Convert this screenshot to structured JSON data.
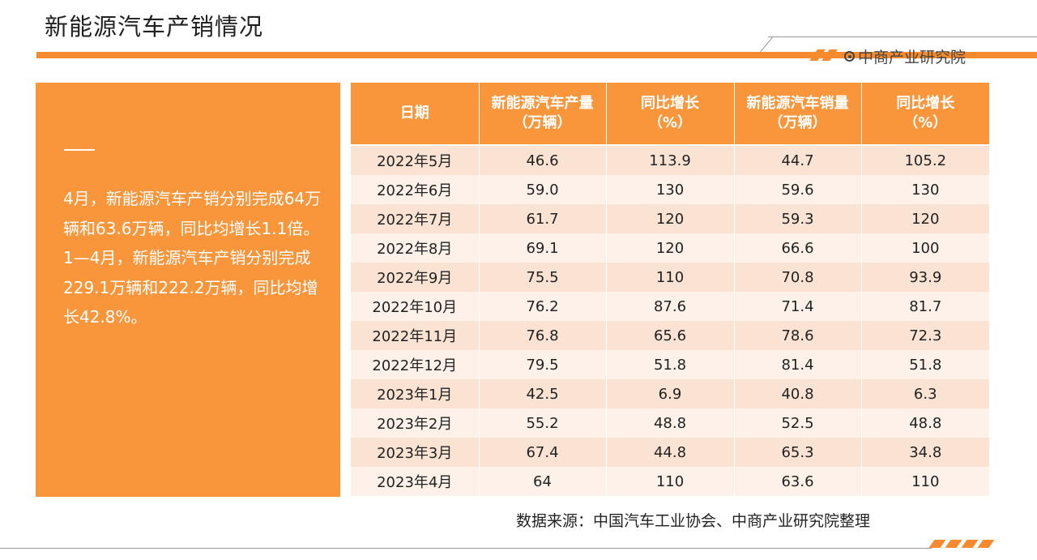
{
  "header": {
    "title": "新能源汽车产销情况",
    "brand": "中商产业研究院"
  },
  "summary": {
    "text": "4月，新能源汽车产销分别完成64万辆和63.6万辆，同比均增长1.1倍。1—4月，新能源汽车产销分别完成229.1万辆和222.2万辆，同比均增长42.8%。"
  },
  "table": {
    "headers": [
      [
        "日期"
      ],
      [
        "新能源汽车产量",
        "（万辆）"
      ],
      [
        "同比增长",
        "（%）"
      ],
      [
        "新能源汽车销量",
        "（万辆）"
      ],
      [
        "同比增长",
        "（%）"
      ]
    ],
    "rows": [
      [
        "2022年5月",
        "46.6",
        "113.9",
        "44.7",
        "105.2"
      ],
      [
        "2022年6月",
        "59.0",
        "130",
        "59.6",
        "130"
      ],
      [
        "2022年7月",
        "61.7",
        "120",
        "59.3",
        "120"
      ],
      [
        "2022年8月",
        "69.1",
        "120",
        "66.6",
        "100"
      ],
      [
        "2022年9月",
        "75.5",
        "110",
        "70.8",
        "93.9"
      ],
      [
        "2022年10月",
        "76.2",
        "87.6",
        "71.4",
        "81.7"
      ],
      [
        "2022年11月",
        "76.8",
        "65.6",
        "78.6",
        "72.3"
      ],
      [
        "2022年12月",
        "79.5",
        "51.8",
        "81.4",
        "51.8"
      ],
      [
        "2023年1月",
        "42.5",
        "6.9",
        "40.8",
        "6.3"
      ],
      [
        "2023年2月",
        "55.2",
        "48.8",
        "52.5",
        "48.8"
      ],
      [
        "2023年3月",
        "67.4",
        "44.8",
        "65.3",
        "34.8"
      ],
      [
        "2023年4月",
        "64",
        "110",
        "63.6",
        "110"
      ]
    ]
  },
  "footer": {
    "source": "数据来源：中国汽车工业协会、中商产业研究院整理"
  },
  "colors": {
    "accent": "#f9963b",
    "row_dark": "#fbe3d3",
    "row_light": "#fdf1e9"
  }
}
